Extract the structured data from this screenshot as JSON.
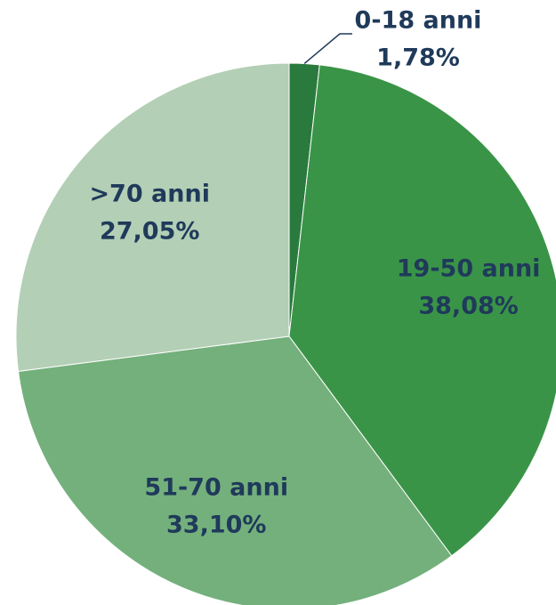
{
  "chart_data": {
    "type": "pie",
    "categories": [
      "0-18 anni",
      "19-50 anni",
      "51-70 anni",
      ">70 anni"
    ],
    "values": [
      1.78,
      38.08,
      33.1,
      27.05
    ],
    "value_labels": [
      "1,78%",
      "38,08%",
      "33,10%",
      "27,05%"
    ],
    "colors": [
      "#2a7a3e",
      "#3a9447",
      "#74b07c",
      "#b3cfb5"
    ]
  }
}
